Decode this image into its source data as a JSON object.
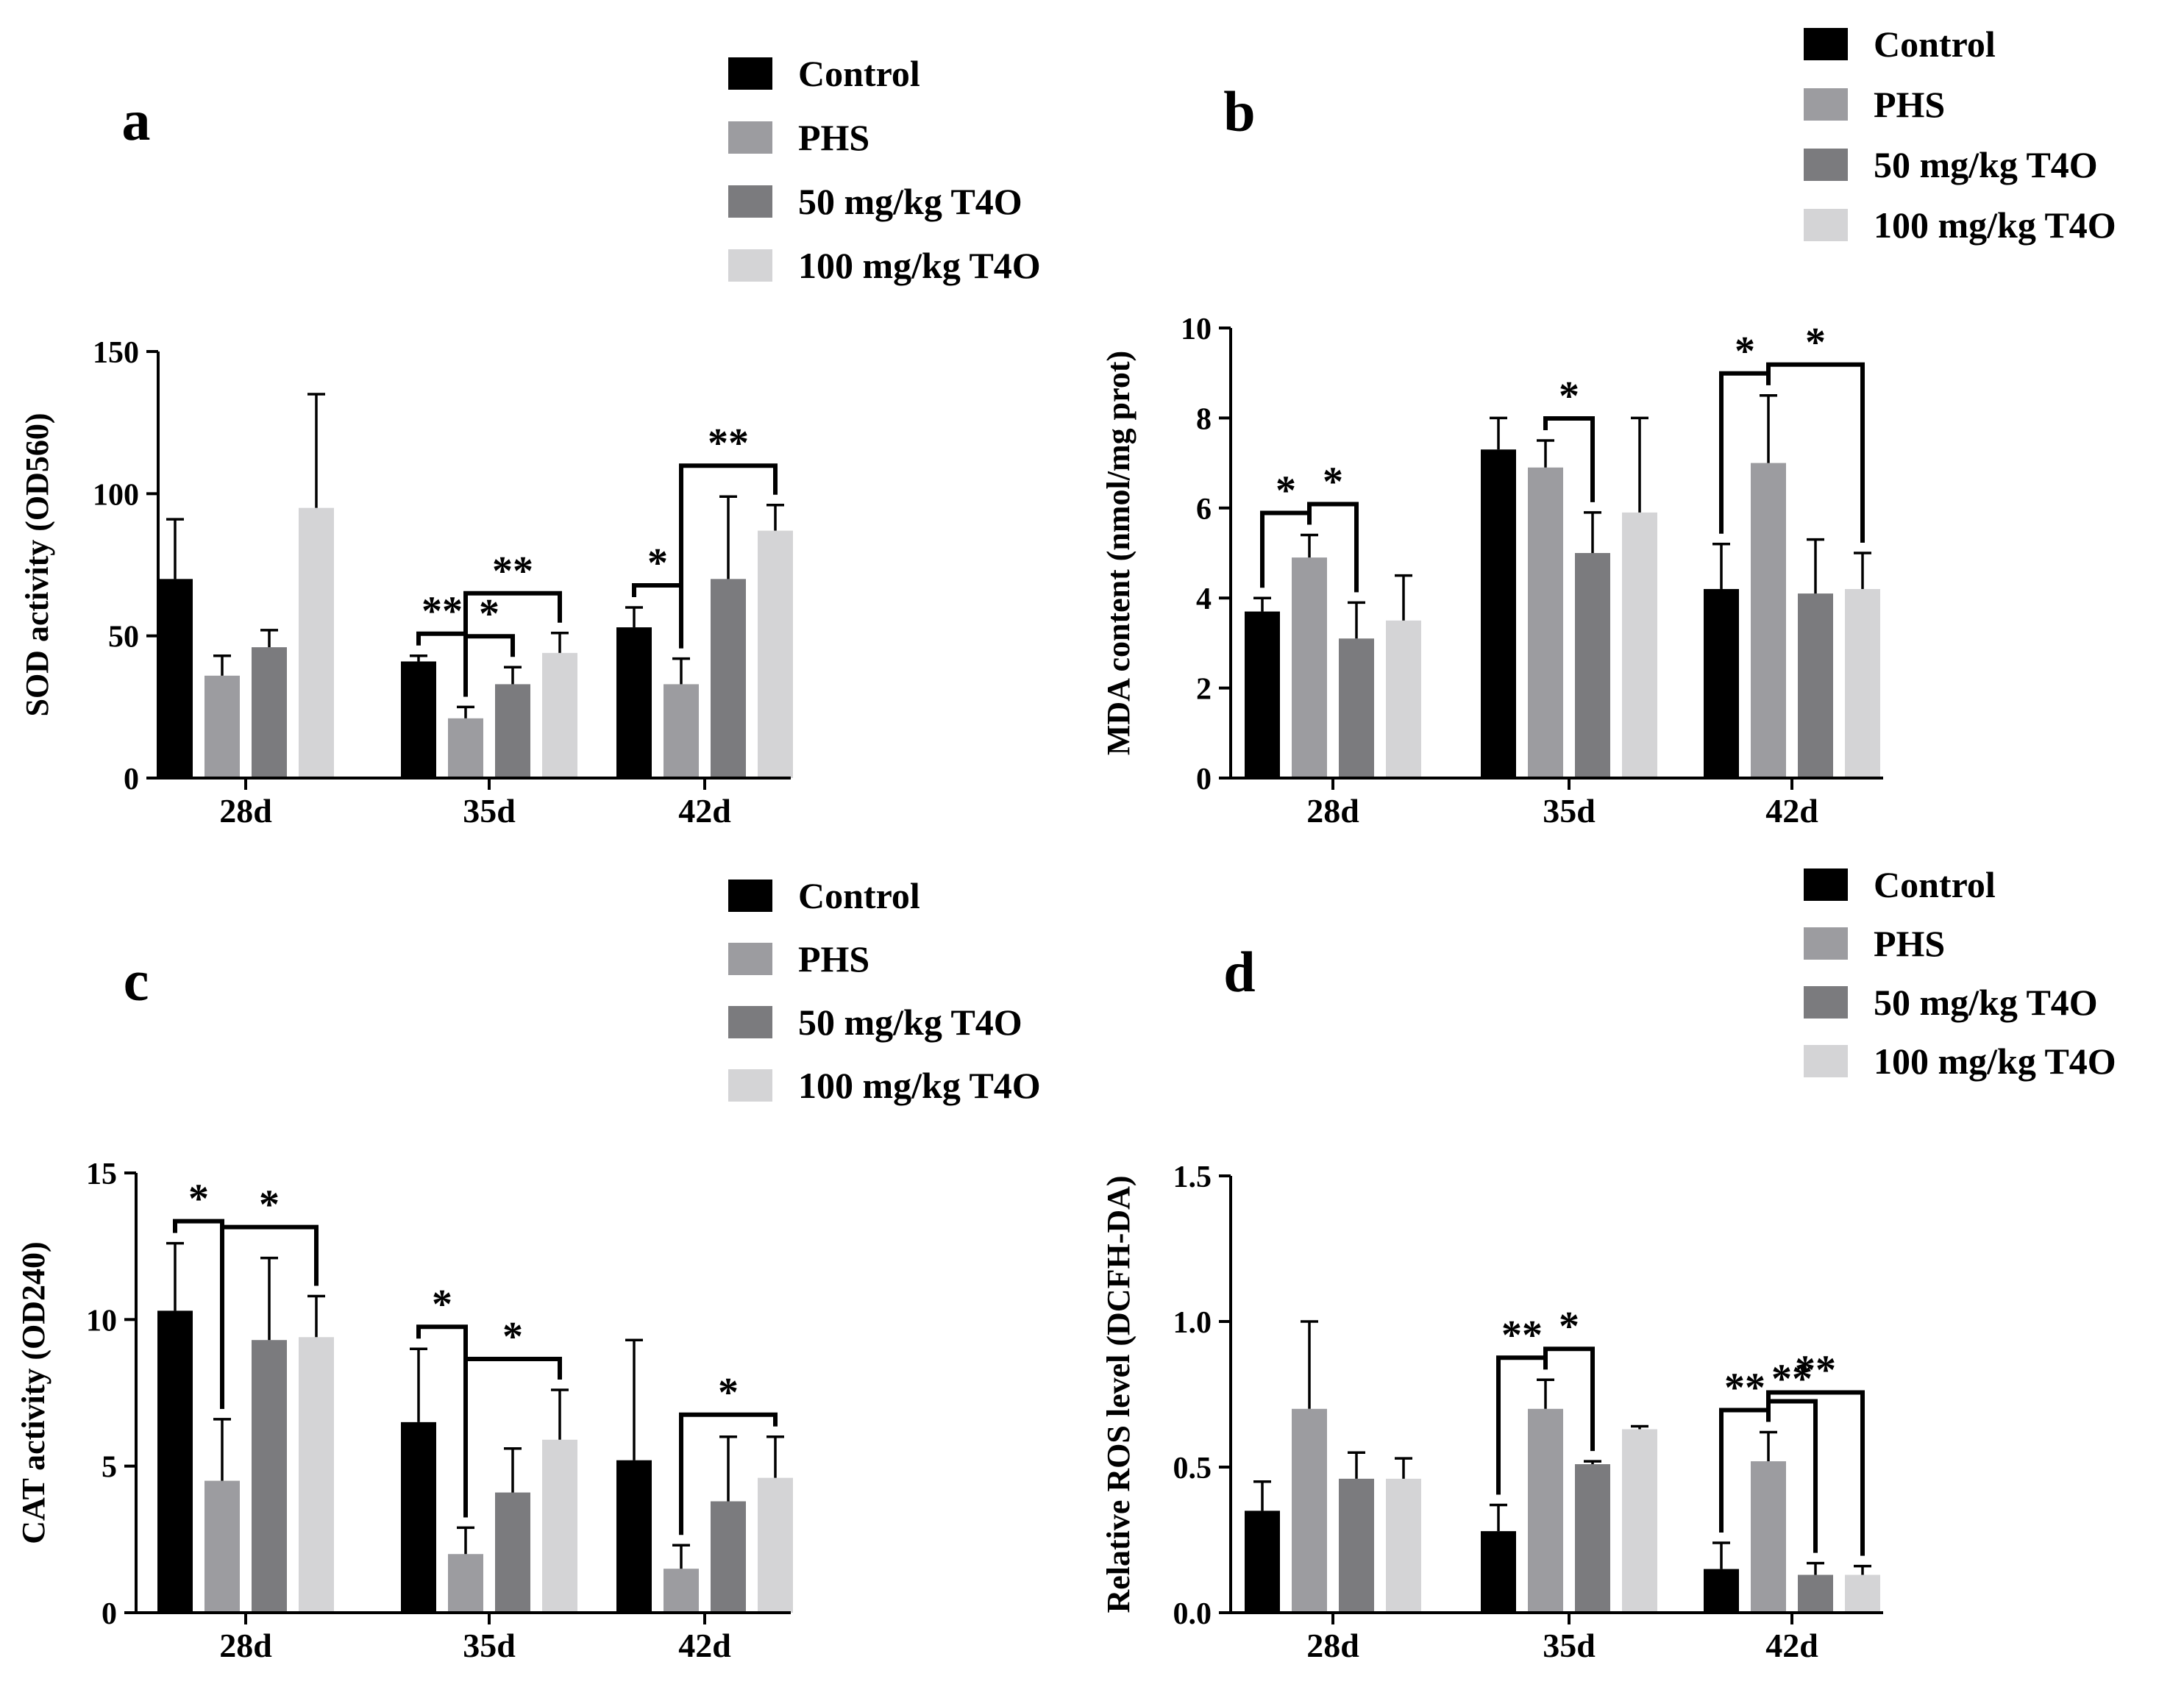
{
  "figure": {
    "chart_data": [
      {
        "type": "bar",
        "panel_label": "a",
        "ylabel": "SOD activity (OD560)",
        "xlabel": "",
        "categories": [
          "28d",
          "35d",
          "42d"
        ],
        "ylim": [
          0,
          150
        ],
        "yticks": [
          "0",
          "50",
          "100",
          "150"
        ],
        "ytick_values": [
          0,
          50,
          100,
          150
        ],
        "legend_position": "top-right",
        "series": [
          {
            "name": "Control",
            "color": "#000000",
            "values": [
              70,
              41,
              53
            ],
            "errors": [
              21,
              2,
              7
            ]
          },
          {
            "name": "PHS",
            "color": "#9c9ca0",
            "values": [
              36,
              21,
              33
            ],
            "errors": [
              7,
              4,
              9
            ]
          },
          {
            "name": "50 mg/kg T4O",
            "color": "#7b7b7e",
            "values": [
              46,
              33,
              70
            ],
            "errors": [
              6,
              6,
              29
            ]
          },
          {
            "name": "100 mg/kg T4O",
            "color": "#d4d4d6",
            "values": [
              95,
              44,
              87
            ],
            "errors": [
              40,
              7,
              9
            ]
          }
        ],
        "annotations": [
          {
            "category": 1,
            "from_series": 0,
            "to_series": 1,
            "label": "**"
          },
          {
            "category": 1,
            "from_series": 1,
            "to_series": 2,
            "label": "*"
          },
          {
            "category": 1,
            "from_series": 1,
            "to_series": 3,
            "label": "**"
          },
          {
            "category": 2,
            "from_series": 0,
            "to_series": 1,
            "label": "*"
          },
          {
            "category": 2,
            "from_series": 1,
            "to_series": 3,
            "label": "**"
          }
        ]
      },
      {
        "type": "bar",
        "panel_label": "b",
        "ylabel": "MDA content (nmol/mg prot)",
        "xlabel": "",
        "categories": [
          "28d",
          "35d",
          "42d"
        ],
        "ylim": [
          0,
          10
        ],
        "yticks": [
          "0",
          "2",
          "4",
          "6",
          "8",
          "10"
        ],
        "ytick_values": [
          0,
          2,
          4,
          6,
          8,
          10
        ],
        "legend_position": "top-right",
        "series": [
          {
            "name": "Control",
            "color": "#000000",
            "values": [
              3.7,
              7.3,
              4.2
            ],
            "errors": [
              0.3,
              0.7,
              1.0
            ]
          },
          {
            "name": "PHS",
            "color": "#9c9ca0",
            "values": [
              4.9,
              6.9,
              7.0
            ],
            "errors": [
              0.5,
              0.6,
              1.5
            ]
          },
          {
            "name": "50 mg/kg T4O",
            "color": "#7b7b7e",
            "values": [
              3.1,
              5.0,
              4.1
            ],
            "errors": [
              0.8,
              0.9,
              1.2
            ]
          },
          {
            "name": "100 mg/kg T4O",
            "color": "#d4d4d6",
            "values": [
              3.5,
              5.9,
              4.2
            ],
            "errors": [
              1.0,
              2.1,
              0.8
            ]
          }
        ],
        "annotations": [
          {
            "category": 0,
            "from_series": 0,
            "to_series": 1,
            "label": "*"
          },
          {
            "category": 0,
            "from_series": 1,
            "to_series": 2,
            "label": "*"
          },
          {
            "category": 1,
            "from_series": 1,
            "to_series": 2,
            "label": "*"
          },
          {
            "category": 2,
            "from_series": 0,
            "to_series": 1,
            "label": "*"
          },
          {
            "category": 2,
            "from_series": 1,
            "to_series": 3,
            "label": "*"
          }
        ]
      },
      {
        "type": "bar",
        "panel_label": "c",
        "ylabel": "CAT activity (OD240)",
        "xlabel": "",
        "categories": [
          "28d",
          "35d",
          "42d"
        ],
        "ylim": [
          0,
          15
        ],
        "yticks": [
          "0",
          "5",
          "10",
          "15"
        ],
        "ytick_values": [
          0,
          5,
          10,
          15
        ],
        "legend_position": "top-right",
        "series": [
          {
            "name": "Control",
            "color": "#000000",
            "values": [
              10.3,
              6.5,
              5.2
            ],
            "errors": [
              2.3,
              2.5,
              4.1
            ]
          },
          {
            "name": "PHS",
            "color": "#9c9ca0",
            "values": [
              4.5,
              2.0,
              1.5
            ],
            "errors": [
              2.1,
              0.9,
              0.8
            ]
          },
          {
            "name": "50 mg/kg T4O",
            "color": "#7b7b7e",
            "values": [
              9.3,
              4.1,
              3.8
            ],
            "errors": [
              2.8,
              1.5,
              2.2
            ]
          },
          {
            "name": "100 mg/kg T4O",
            "color": "#d4d4d6",
            "values": [
              9.4,
              5.9,
              4.6
            ],
            "errors": [
              1.4,
              1.7,
              1.4
            ]
          }
        ],
        "annotations": [
          {
            "category": 0,
            "from_series": 0,
            "to_series": 1,
            "label": "*"
          },
          {
            "category": 0,
            "from_series": 1,
            "to_series": 3,
            "label": "*"
          },
          {
            "category": 1,
            "from_series": 0,
            "to_series": 1,
            "label": "*"
          },
          {
            "category": 1,
            "from_series": 1,
            "to_series": 3,
            "label": "*"
          },
          {
            "category": 2,
            "from_series": 1,
            "to_series": 3,
            "label": "*"
          }
        ]
      },
      {
        "type": "bar",
        "panel_label": "d",
        "ylabel": "Relative ROS level (DCFH-DA)",
        "xlabel": "",
        "categories": [
          "28d",
          "35d",
          "42d"
        ],
        "ylim": [
          0,
          1.5
        ],
        "yticks": [
          "0.0",
          "0.5",
          "1.0",
          "1.5"
        ],
        "ytick_values": [
          0,
          0.5,
          1.0,
          1.5
        ],
        "legend_position": "top-right",
        "series": [
          {
            "name": "Control",
            "color": "#000000",
            "values": [
              0.35,
              0.28,
              0.15
            ],
            "errors": [
              0.1,
              0.09,
              0.09
            ]
          },
          {
            "name": "PHS",
            "color": "#9c9ca0",
            "values": [
              0.7,
              0.7,
              0.52
            ],
            "errors": [
              0.3,
              0.1,
              0.1
            ]
          },
          {
            "name": "50 mg/kg T4O",
            "color": "#7b7b7e",
            "values": [
              0.46,
              0.51,
              0.13
            ],
            "errors": [
              0.09,
              0.01,
              0.04
            ]
          },
          {
            "name": "100 mg/kg T4O",
            "color": "#d4d4d6",
            "values": [
              0.46,
              0.63,
              0.13
            ],
            "errors": [
              0.07,
              0.01,
              0.03
            ]
          }
        ],
        "annotations": [
          {
            "category": 1,
            "from_series": 0,
            "to_series": 1,
            "label": "**"
          },
          {
            "category": 1,
            "from_series": 1,
            "to_series": 2,
            "label": "*"
          },
          {
            "category": 2,
            "from_series": 0,
            "to_series": 1,
            "label": "**"
          },
          {
            "category": 2,
            "from_series": 1,
            "to_series": 2,
            "label": "**"
          },
          {
            "category": 2,
            "from_series": 1,
            "to_series": 3,
            "label": "**"
          }
        ]
      }
    ]
  }
}
